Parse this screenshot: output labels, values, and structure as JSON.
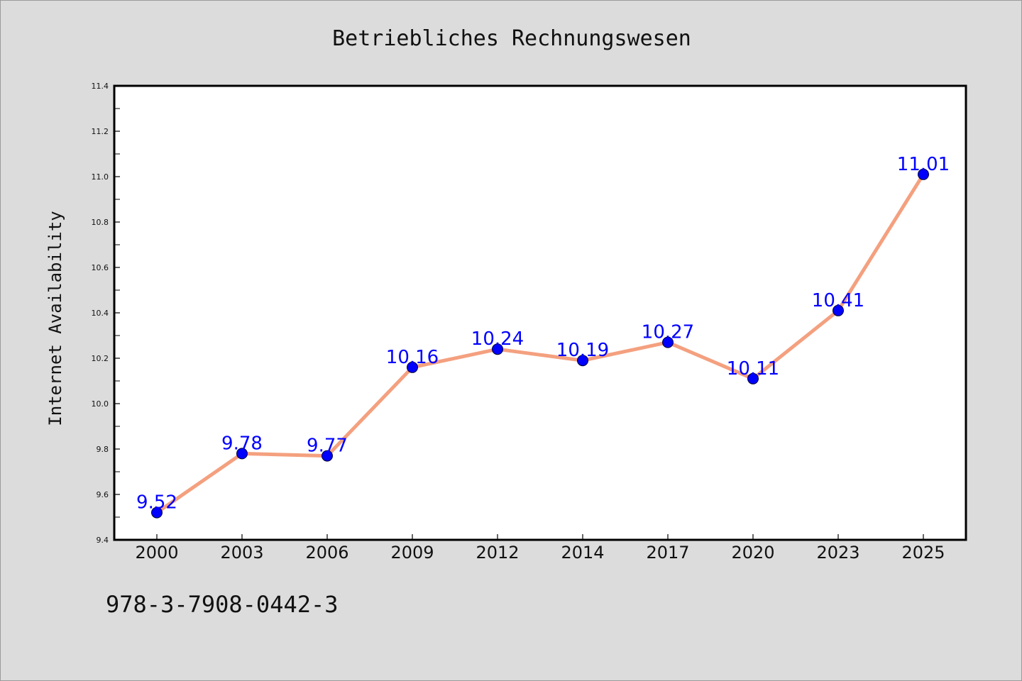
{
  "chart_data": {
    "type": "line",
    "title": "Betriebliches Rechnungswesen",
    "xlabel": "",
    "ylabel": "Internet Availability",
    "categories": [
      "2000",
      "2003",
      "2006",
      "2009",
      "2012",
      "2014",
      "2017",
      "2020",
      "2023",
      "2025"
    ],
    "series": [
      {
        "values": [
          9.52,
          9.78,
          9.77,
          10.16,
          10.24,
          10.19,
          10.27,
          10.11,
          10.41,
          11.01
        ],
        "labels": [
          "9.52",
          "9.78",
          "9.77",
          "10.16",
          "10.24",
          "10.19",
          "10.27",
          "10.11",
          "10.41",
          "11.01"
        ]
      }
    ],
    "ylim": [
      9.4,
      11.4
    ],
    "yticks": [
      "9.4",
      "9.6",
      "9.8",
      "10.0",
      "10.2",
      "10.4",
      "10.6",
      "10.8",
      "11.0",
      "11.2",
      "11.4"
    ],
    "grid": false,
    "colors": {
      "line": "#f4a07f",
      "marker": "#0000ff",
      "label": "#0000ff",
      "background": "#dcdcdc",
      "plot_area": "#ffffff"
    }
  },
  "footer": {
    "isbn": "978-3-7908-0442-3"
  }
}
